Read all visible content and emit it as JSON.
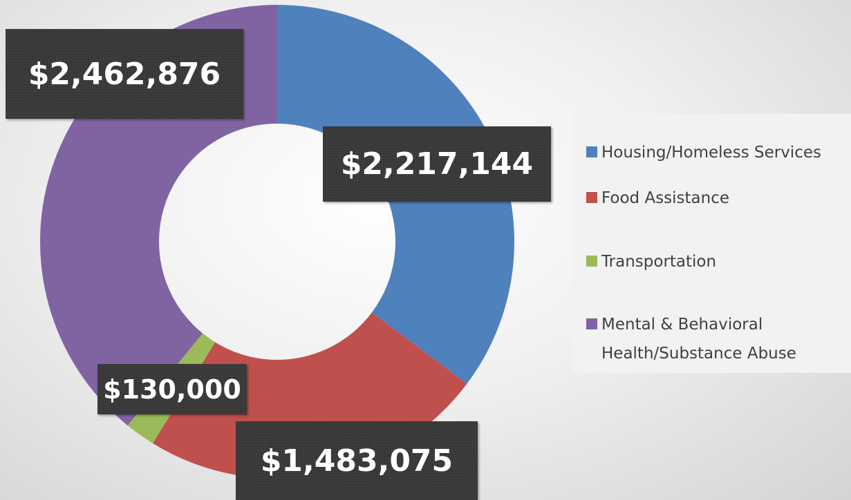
{
  "chart_data": {
    "type": "donut",
    "categories": [
      "Housing/Homeless Services",
      "Food Assistance",
      "Transportation",
      "Mental & Behavioral Health/Substance Abuse"
    ],
    "values": [
      2217144,
      1483075,
      130000,
      2462876
    ],
    "value_labels": [
      "$2,217,144",
      "$1,483,075",
      "$130,000",
      "$2,462,876"
    ],
    "colors": [
      "#4f81bd",
      "#c0504d",
      "#9bbb59",
      "#8064a2"
    ],
    "legend": "right"
  }
}
